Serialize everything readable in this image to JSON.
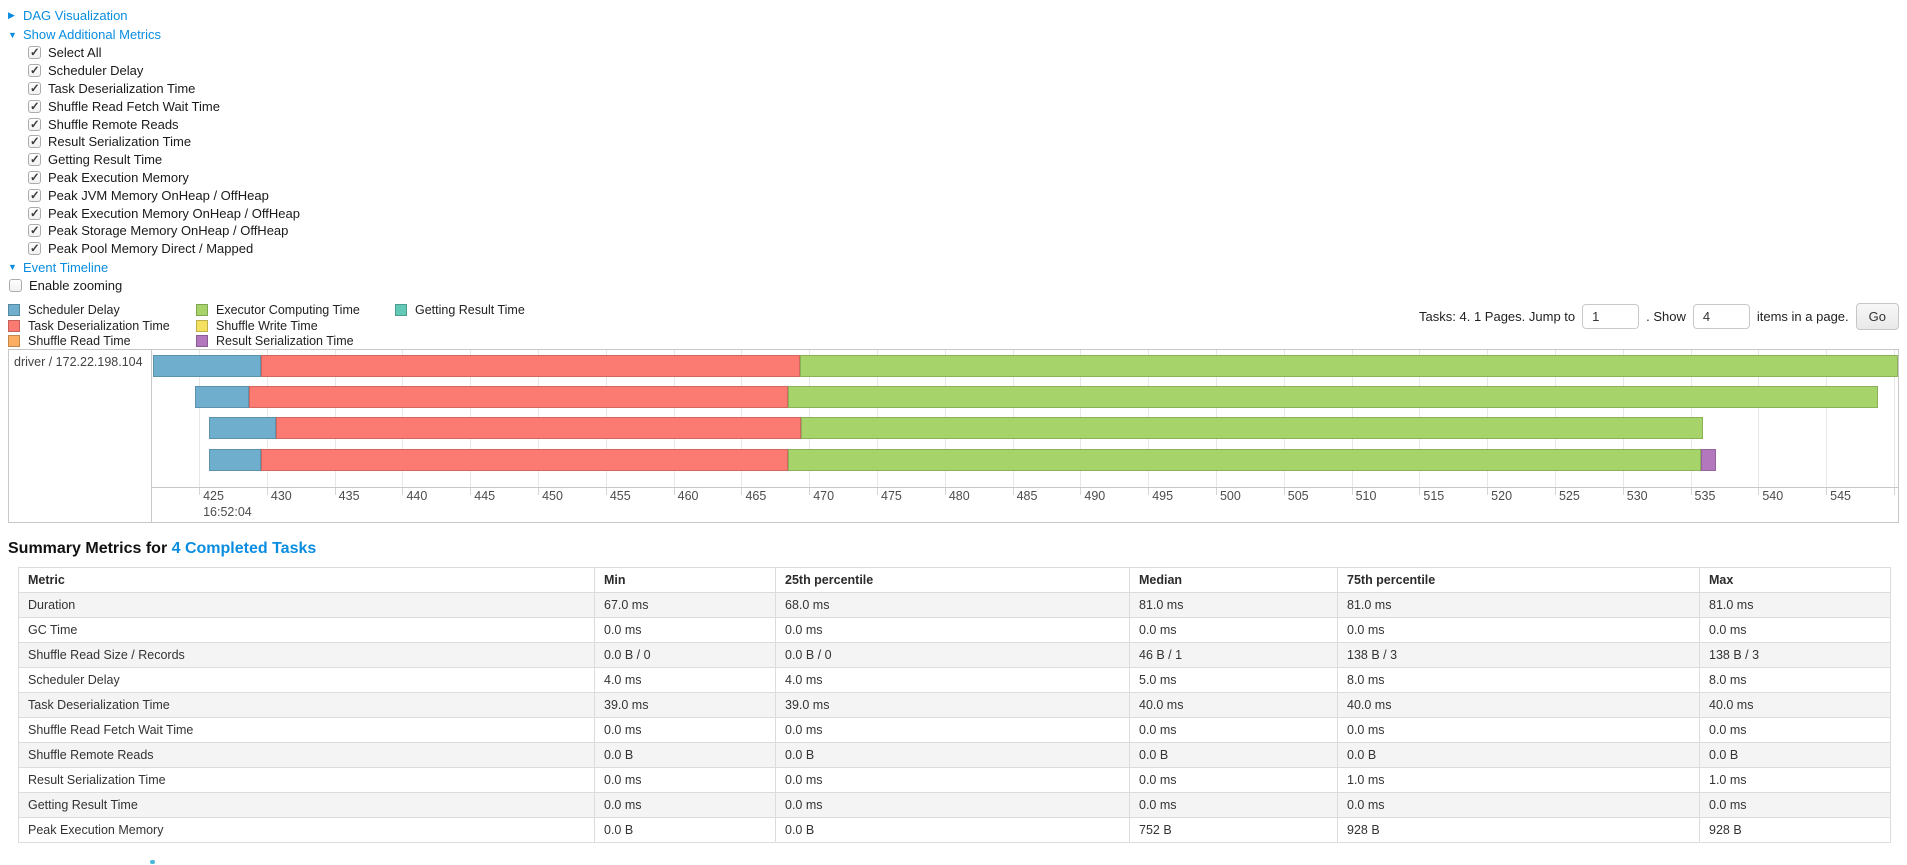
{
  "nav": {
    "dag": {
      "arrow": "▶",
      "label": "DAG Visualization"
    },
    "metrics_toggle": {
      "arrow": "▼",
      "label": "Show Additional Metrics"
    },
    "checkboxes": [
      "Select All",
      "Scheduler Delay",
      "Task Deserialization Time",
      "Shuffle Read Fetch Wait Time",
      "Shuffle Remote Reads",
      "Result Serialization Time",
      "Getting Result Time",
      "Peak Execution Memory",
      "Peak JVM Memory OnHeap / OffHeap",
      "Peak Execution Memory OnHeap / OffHeap",
      "Peak Storage Memory OnHeap / OffHeap",
      "Peak Pool Memory Direct / Mapped"
    ],
    "event_timeline": {
      "arrow": "▼",
      "label": "Event Timeline"
    },
    "enable_zooming": {
      "label": "Enable zooming",
      "checked": false
    }
  },
  "legend": {
    "columns": [
      [
        {
          "label": "Scheduler Delay",
          "color_key": "scheduler_delay"
        },
        {
          "label": "Task Deserialization Time",
          "color_key": "task_deserialization"
        },
        {
          "label": "Shuffle Read Time",
          "color_key": "shuffle_read"
        }
      ],
      [
        {
          "label": "Executor Computing Time",
          "color_key": "executor_computing"
        },
        {
          "label": "Shuffle Write Time",
          "color_key": "shuffle_write"
        },
        {
          "label": "Result Serialization Time",
          "color_key": "result_serialization"
        }
      ],
      [
        {
          "label": "Getting Result Time",
          "color_key": "getting_result"
        }
      ]
    ]
  },
  "pagination": {
    "tasks_label": "Tasks: 4. 1 Pages. Jump to",
    "jump_value": "1",
    "dot_show_label": ". Show",
    "show_value": "4",
    "items_label": "items in a page.",
    "go_label": "Go"
  },
  "chart_data": {
    "type": "timeline",
    "group_label": "driver / 172.22.198.104",
    "axis": {
      "window_min": 421.6,
      "window_max": 550.3,
      "tick_min": 425,
      "tick_max": 550,
      "tick_step": 5,
      "start_time_label": "16:52:04",
      "units": "milliseconds within second 16:52:04"
    },
    "colors": {
      "scheduler_delay": "#6FAECD",
      "task_deserialization": "#FB7B72",
      "shuffle_read": "#FBAD61",
      "executor_computing": "#A6D46A",
      "shuffle_write": "#F3E15F",
      "result_serialization": "#B277BC",
      "getting_result": "#62C9B7"
    },
    "tasks": [
      {
        "segments": [
          {
            "name": "scheduler_delay",
            "start": 421.6,
            "end": 429.6
          },
          {
            "name": "task_deserialization",
            "start": 429.6,
            "end": 469.3
          },
          {
            "name": "executor_computing",
            "start": 469.3,
            "end": 550.3
          }
        ]
      },
      {
        "segments": [
          {
            "name": "scheduler_delay",
            "start": 424.7,
            "end": 428.7
          },
          {
            "name": "task_deserialization",
            "start": 428.7,
            "end": 468.4
          },
          {
            "name": "executor_computing",
            "start": 468.4,
            "end": 548.8
          }
        ]
      },
      {
        "segments": [
          {
            "name": "scheduler_delay",
            "start": 425.7,
            "end": 430.7
          },
          {
            "name": "task_deserialization",
            "start": 430.7,
            "end": 469.4
          },
          {
            "name": "executor_computing",
            "start": 469.4,
            "end": 535.9
          }
        ]
      },
      {
        "segments": [
          {
            "name": "scheduler_delay",
            "start": 425.7,
            "end": 429.6
          },
          {
            "name": "task_deserialization",
            "start": 429.6,
            "end": 468.4
          },
          {
            "name": "executor_computing",
            "start": 468.4,
            "end": 535.8
          },
          {
            "name": "result_serialization",
            "start": 535.8,
            "end": 536.9
          }
        ]
      }
    ]
  },
  "summary": {
    "title_prefix": "Summary Metrics for",
    "title_link": "4 Completed Tasks",
    "columns": [
      "Metric",
      "Min",
      "25th percentile",
      "Median",
      "75th percentile",
      "Max"
    ],
    "rows": [
      [
        "Duration",
        "67.0 ms",
        "68.0 ms",
        "81.0 ms",
        "81.0 ms",
        "81.0 ms"
      ],
      [
        "GC Time",
        "0.0 ms",
        "0.0 ms",
        "0.0 ms",
        "0.0 ms",
        "0.0 ms"
      ],
      [
        "Shuffle Read Size / Records",
        "0.0 B / 0",
        "0.0 B / 0",
        "46 B / 1",
        "138 B / 3",
        "138 B / 3"
      ],
      [
        "Scheduler Delay",
        "4.0 ms",
        "4.0 ms",
        "5.0 ms",
        "8.0 ms",
        "8.0 ms"
      ],
      [
        "Task Deserialization Time",
        "39.0 ms",
        "39.0 ms",
        "40.0 ms",
        "40.0 ms",
        "40.0 ms"
      ],
      [
        "Shuffle Read Fetch Wait Time",
        "0.0 ms",
        "0.0 ms",
        "0.0 ms",
        "0.0 ms",
        "0.0 ms"
      ],
      [
        "Shuffle Remote Reads",
        "0.0 B",
        "0.0 B",
        "0.0 B",
        "0.0 B",
        "0.0 B"
      ],
      [
        "Result Serialization Time",
        "0.0 ms",
        "0.0 ms",
        "0.0 ms",
        "1.0 ms",
        "1.0 ms"
      ],
      [
        "Getting Result Time",
        "0.0 ms",
        "0.0 ms",
        "0.0 ms",
        "0.0 ms",
        "0.0 ms"
      ],
      [
        "Peak Execution Memory",
        "0.0 B",
        "0.0 B",
        "752 B",
        "928 B",
        "928 B"
      ]
    ]
  }
}
